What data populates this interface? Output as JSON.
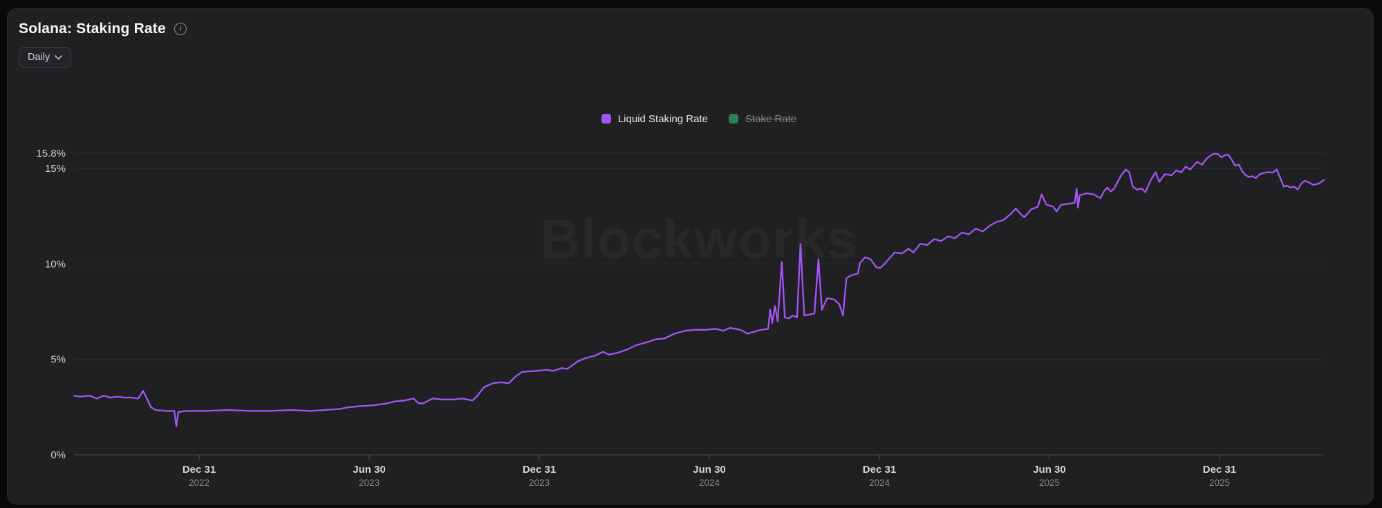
{
  "header": {
    "title": "Solana: Staking Rate",
    "info_icon": "info-circle",
    "interval_selector": {
      "value": "Daily",
      "icon": "chevron-down"
    }
  },
  "legend": {
    "items": [
      {
        "label": "Liquid Staking Rate",
        "color": "#a257f5",
        "active": true
      },
      {
        "label": "Stake Rate",
        "color": "#2f7d52",
        "active": false
      }
    ]
  },
  "watermark": "Blockworks",
  "chart_data": {
    "type": "line",
    "title": "Solana: Staking Rate",
    "grid": true,
    "legend_position": "top-center",
    "x_axis": {
      "unit": "date-decimal-year",
      "range": [
        2022.632,
        2026.307
      ],
      "ticks": [
        {
          "label": "Dec 31",
          "year": "2022",
          "decimal_year": 2023.0
        },
        {
          "label": "Jun 30",
          "year": "2023",
          "decimal_year": 2023.5
        },
        {
          "label": "Dec 31",
          "year": "2023",
          "decimal_year": 2024.0
        },
        {
          "label": "Jun 30",
          "year": "2024",
          "decimal_year": 2024.5
        },
        {
          "label": "Dec 31",
          "year": "2024",
          "decimal_year": 2025.0
        },
        {
          "label": "Jun 30",
          "year": "2025",
          "decimal_year": 2025.5
        },
        {
          "label": "Dec 31",
          "year": "2025",
          "decimal_year": 2026.0
        }
      ]
    },
    "y_axis": {
      "unit": "%",
      "range": [
        0,
        15.8
      ],
      "ticks": [
        {
          "value": 0,
          "label": "0%"
        },
        {
          "value": 5,
          "label": "5%"
        },
        {
          "value": 10,
          "label": "10%"
        },
        {
          "value": 15,
          "label": "15%"
        },
        {
          "value": 15.8,
          "label": "15.8%"
        }
      ]
    },
    "series": [
      {
        "name": "Liquid Staking Rate",
        "color": "#a257f5",
        "visible": true,
        "points": [
          [
            2022.632,
            3.1
          ],
          [
            2022.648,
            3.05
          ],
          [
            2022.678,
            3.1
          ],
          [
            2022.699,
            2.95
          ],
          [
            2022.719,
            3.1
          ],
          [
            2022.74,
            3.0
          ],
          [
            2022.76,
            3.05
          ],
          [
            2022.78,
            3.0
          ],
          [
            2022.801,
            3.0
          ],
          [
            2022.821,
            2.95
          ],
          [
            2022.835,
            3.35
          ],
          [
            2022.845,
            3.0
          ],
          [
            2022.858,
            2.5
          ],
          [
            2022.872,
            2.35
          ],
          [
            2022.902,
            2.3
          ],
          [
            2022.927,
            2.3
          ],
          [
            2022.933,
            1.5
          ],
          [
            2022.939,
            2.25
          ],
          [
            2022.963,
            2.3
          ],
          [
            2023.024,
            2.3
          ],
          [
            2023.085,
            2.35
          ],
          [
            2023.147,
            2.3
          ],
          [
            2023.208,
            2.3
          ],
          [
            2023.269,
            2.35
          ],
          [
            2023.33,
            2.3
          ],
          [
            2023.37,
            2.35
          ],
          [
            2023.411,
            2.4
          ],
          [
            2023.442,
            2.5
          ],
          [
            2023.472,
            2.55
          ],
          [
            2023.513,
            2.6
          ],
          [
            2023.554,
            2.7
          ],
          [
            2023.574,
            2.8
          ],
          [
            2023.604,
            2.85
          ],
          [
            2023.631,
            2.95
          ],
          [
            2023.645,
            2.7
          ],
          [
            2023.659,
            2.7
          ],
          [
            2023.686,
            2.95
          ],
          [
            2023.716,
            2.9
          ],
          [
            2023.747,
            2.9
          ],
          [
            2023.773,
            2.95
          ],
          [
            2023.804,
            2.85
          ],
          [
            2023.818,
            3.1
          ],
          [
            2023.838,
            3.55
          ],
          [
            2023.863,
            3.75
          ],
          [
            2023.889,
            3.8
          ],
          [
            2023.91,
            3.75
          ],
          [
            2023.93,
            4.1
          ],
          [
            2023.95,
            4.35
          ],
          [
            2023.991,
            4.4
          ],
          [
            2024.022,
            4.45
          ],
          [
            2024.042,
            4.4
          ],
          [
            2024.066,
            4.55
          ],
          [
            2024.083,
            4.5
          ],
          [
            2024.113,
            4.9
          ],
          [
            2024.134,
            5.05
          ],
          [
            2024.164,
            5.2
          ],
          [
            2024.188,
            5.4
          ],
          [
            2024.205,
            5.25
          ],
          [
            2024.231,
            5.35
          ],
          [
            2024.256,
            5.5
          ],
          [
            2024.286,
            5.75
          ],
          [
            2024.317,
            5.9
          ],
          [
            2024.341,
            6.05
          ],
          [
            2024.368,
            6.1
          ],
          [
            2024.398,
            6.35
          ],
          [
            2024.429,
            6.5
          ],
          [
            2024.459,
            6.55
          ],
          [
            2024.49,
            6.55
          ],
          [
            2024.52,
            6.6
          ],
          [
            2024.541,
            6.5
          ],
          [
            2024.561,
            6.65
          ],
          [
            2024.591,
            6.55
          ],
          [
            2024.612,
            6.35
          ],
          [
            2024.632,
            6.45
          ],
          [
            2024.652,
            6.55
          ],
          [
            2024.673,
            6.6
          ],
          [
            2024.679,
            7.6
          ],
          [
            2024.685,
            6.9
          ],
          [
            2024.693,
            7.8
          ],
          [
            2024.701,
            7.0
          ],
          [
            2024.713,
            10.1
          ],
          [
            2024.722,
            7.2
          ],
          [
            2024.734,
            7.15
          ],
          [
            2024.746,
            7.3
          ],
          [
            2024.758,
            7.2
          ],
          [
            2024.768,
            11.05
          ],
          [
            2024.779,
            7.3
          ],
          [
            2024.795,
            7.35
          ],
          [
            2024.809,
            7.4
          ],
          [
            2024.821,
            10.25
          ],
          [
            2024.831,
            7.6
          ],
          [
            2024.846,
            8.2
          ],
          [
            2024.866,
            8.15
          ],
          [
            2024.882,
            7.9
          ],
          [
            2024.893,
            7.3
          ],
          [
            2024.903,
            9.25
          ],
          [
            2024.917,
            9.4
          ],
          [
            2024.937,
            9.5
          ],
          [
            2024.943,
            10.05
          ],
          [
            2024.958,
            10.35
          ],
          [
            2024.974,
            10.25
          ],
          [
            2024.992,
            9.8
          ],
          [
            2025.004,
            9.8
          ],
          [
            2025.025,
            10.2
          ],
          [
            2025.045,
            10.6
          ],
          [
            2025.066,
            10.55
          ],
          [
            2025.086,
            10.8
          ],
          [
            2025.1,
            10.6
          ],
          [
            2025.12,
            11.05
          ],
          [
            2025.141,
            11.0
          ],
          [
            2025.161,
            11.3
          ],
          [
            2025.182,
            11.2
          ],
          [
            2025.202,
            11.45
          ],
          [
            2025.222,
            11.35
          ],
          [
            2025.243,
            11.65
          ],
          [
            2025.263,
            11.55
          ],
          [
            2025.283,
            11.85
          ],
          [
            2025.304,
            11.7
          ],
          [
            2025.324,
            12.0
          ],
          [
            2025.344,
            12.2
          ],
          [
            2025.365,
            12.3
          ],
          [
            2025.385,
            12.6
          ],
          [
            2025.401,
            12.9
          ],
          [
            2025.416,
            12.6
          ],
          [
            2025.426,
            12.45
          ],
          [
            2025.446,
            12.85
          ],
          [
            2025.466,
            13.0
          ],
          [
            2025.477,
            13.65
          ],
          [
            2025.491,
            13.1
          ],
          [
            2025.511,
            13.0
          ],
          [
            2025.521,
            12.75
          ],
          [
            2025.534,
            13.1
          ],
          [
            2025.554,
            13.15
          ],
          [
            2025.574,
            13.2
          ],
          [
            2025.58,
            13.95
          ],
          [
            2025.584,
            12.95
          ],
          [
            2025.589,
            13.6
          ],
          [
            2025.609,
            13.7
          ],
          [
            2025.629,
            13.65
          ],
          [
            2025.65,
            13.45
          ],
          [
            2025.66,
            13.8
          ],
          [
            2025.67,
            14.0
          ],
          [
            2025.68,
            13.8
          ],
          [
            2025.69,
            13.95
          ],
          [
            2025.711,
            14.65
          ],
          [
            2025.725,
            14.95
          ],
          [
            2025.735,
            14.8
          ],
          [
            2025.745,
            14.05
          ],
          [
            2025.757,
            13.9
          ],
          [
            2025.772,
            13.95
          ],
          [
            2025.782,
            13.75
          ],
          [
            2025.798,
            14.4
          ],
          [
            2025.812,
            14.8
          ],
          [
            2025.823,
            14.3
          ],
          [
            2025.839,
            14.7
          ],
          [
            2025.859,
            14.65
          ],
          [
            2025.873,
            14.9
          ],
          [
            2025.888,
            14.8
          ],
          [
            2025.9,
            15.1
          ],
          [
            2025.914,
            14.95
          ],
          [
            2025.934,
            15.35
          ],
          [
            2025.949,
            15.2
          ],
          [
            2025.961,
            15.5
          ],
          [
            2025.975,
            15.7
          ],
          [
            2025.985,
            15.78
          ],
          [
            2025.996,
            15.75
          ],
          [
            2026.006,
            15.58
          ],
          [
            2026.016,
            15.7
          ],
          [
            2026.026,
            15.72
          ],
          [
            2026.036,
            15.45
          ],
          [
            2026.046,
            15.15
          ],
          [
            2026.057,
            15.2
          ],
          [
            2026.067,
            14.85
          ],
          [
            2026.077,
            14.65
          ],
          [
            2026.087,
            14.55
          ],
          [
            2026.097,
            14.6
          ],
          [
            2026.107,
            14.5
          ],
          [
            2026.118,
            14.7
          ],
          [
            2026.138,
            14.8
          ],
          [
            2026.158,
            14.8
          ],
          [
            2026.168,
            14.95
          ],
          [
            2026.179,
            14.5
          ],
          [
            2026.189,
            14.05
          ],
          [
            2026.199,
            14.1
          ],
          [
            2026.209,
            14.0
          ],
          [
            2026.219,
            14.05
          ],
          [
            2026.23,
            13.9
          ],
          [
            2026.24,
            14.2
          ],
          [
            2026.25,
            14.35
          ],
          [
            2026.26,
            14.3
          ],
          [
            2026.274,
            14.15
          ],
          [
            2026.291,
            14.2
          ],
          [
            2026.307,
            14.4
          ]
        ]
      },
      {
        "name": "Stake Rate",
        "color": "#2f7d52",
        "visible": false,
        "points": []
      }
    ]
  }
}
